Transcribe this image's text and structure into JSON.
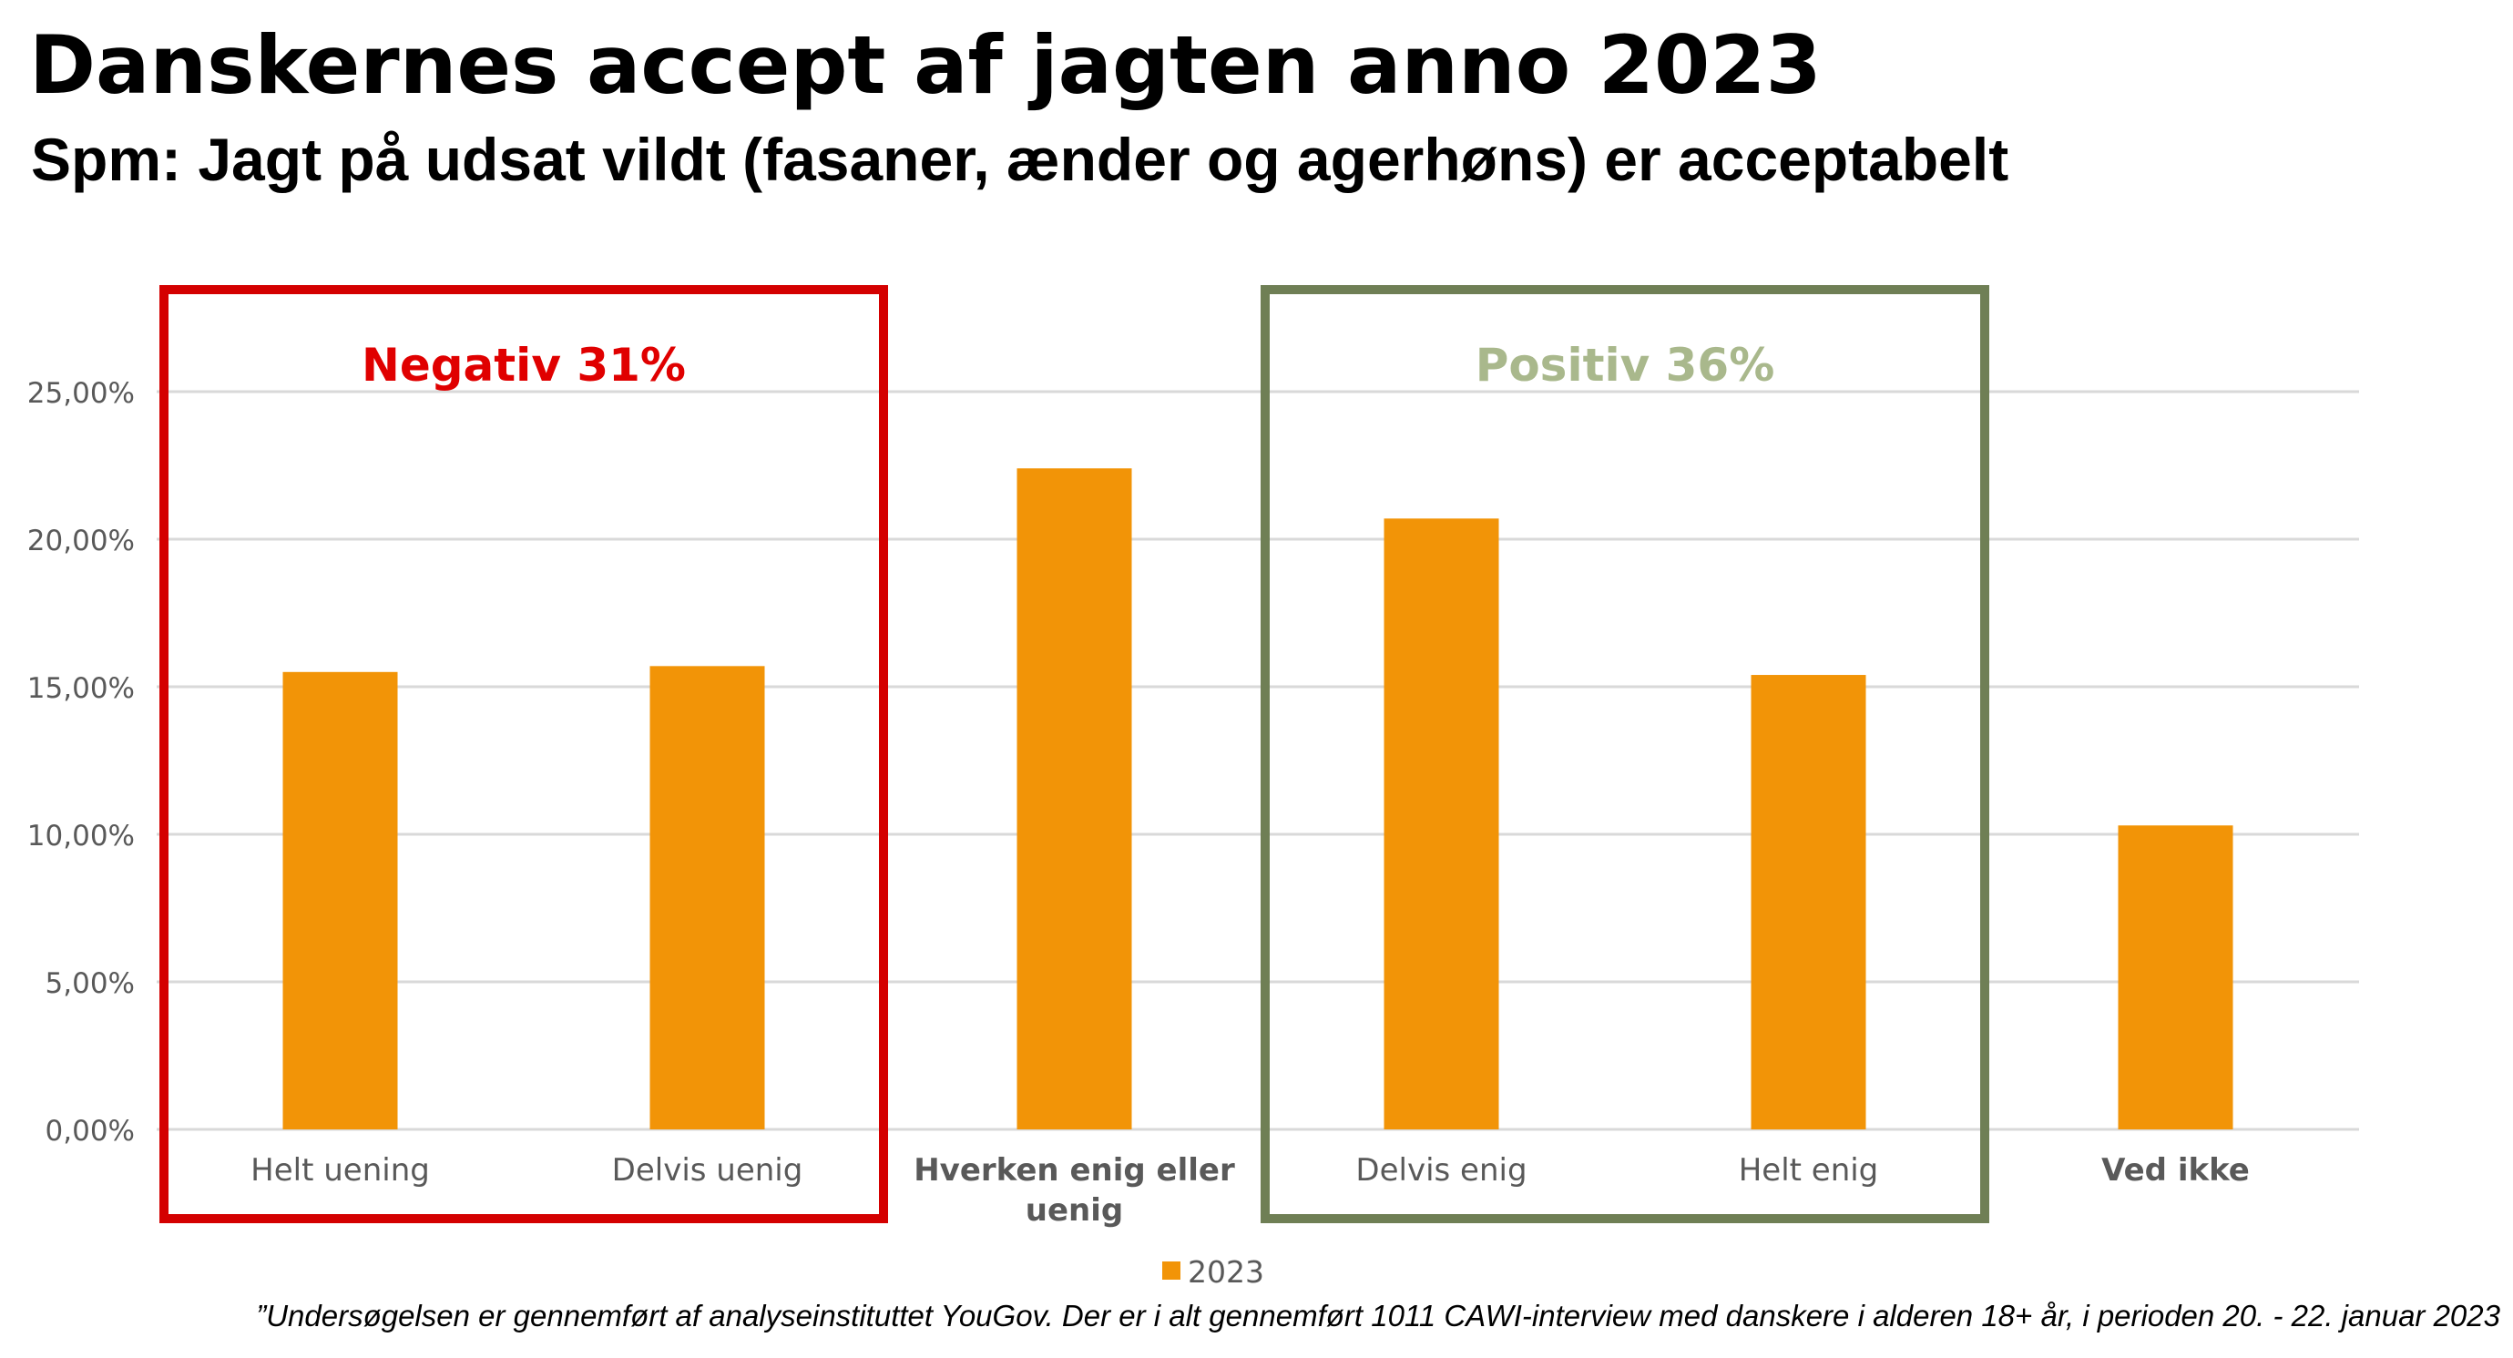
{
  "title": "Danskernes accept af jagten anno 2023",
  "subtitle": "Spm: Jagt på udsat vildt (fasaner, ænder og agerhøns) er acceptabelt",
  "footnote": "”Undersøgelsen er gennemført af analyseinstituttet YouGov. Der er i alt gennemført 1011 CAWI-interview med danskere i alderen 18+ år, i perioden 20. - 22. januar 2023",
  "colors": {
    "bar": "#F29407",
    "negative_box": "#D40000",
    "negative_text": "#E00000",
    "positive_box": "#6F7F55",
    "positive_text": "#A9B88C",
    "grid": "#D9D9D9",
    "tick_text": "#595959"
  },
  "chart_data": {
    "type": "bar",
    "categories": [
      "Helt uening",
      "Delvis uenig",
      "Hverken enig eller uenig",
      "Delvis enig",
      "Helt enig",
      "Ved ikke"
    ],
    "series": [
      {
        "name": "2023",
        "values": [
          15.5,
          15.7,
          22.4,
          20.7,
          15.4,
          10.3
        ]
      }
    ],
    "ylim": [
      0,
      25
    ],
    "yticks": [
      "0,00%",
      "5,00%",
      "10,00%",
      "15,00%",
      "20,00%",
      "25,00%"
    ],
    "ytick_values": [
      0,
      5,
      10,
      15,
      20,
      25
    ],
    "grid": true,
    "legend": "bottom",
    "annotations": [
      {
        "label": "Negativ 31%",
        "categories": [
          0,
          1
        ],
        "tone": "negative"
      },
      {
        "label": "Positiv 36%",
        "categories": [
          3,
          4
        ],
        "tone": "positive"
      }
    ]
  }
}
